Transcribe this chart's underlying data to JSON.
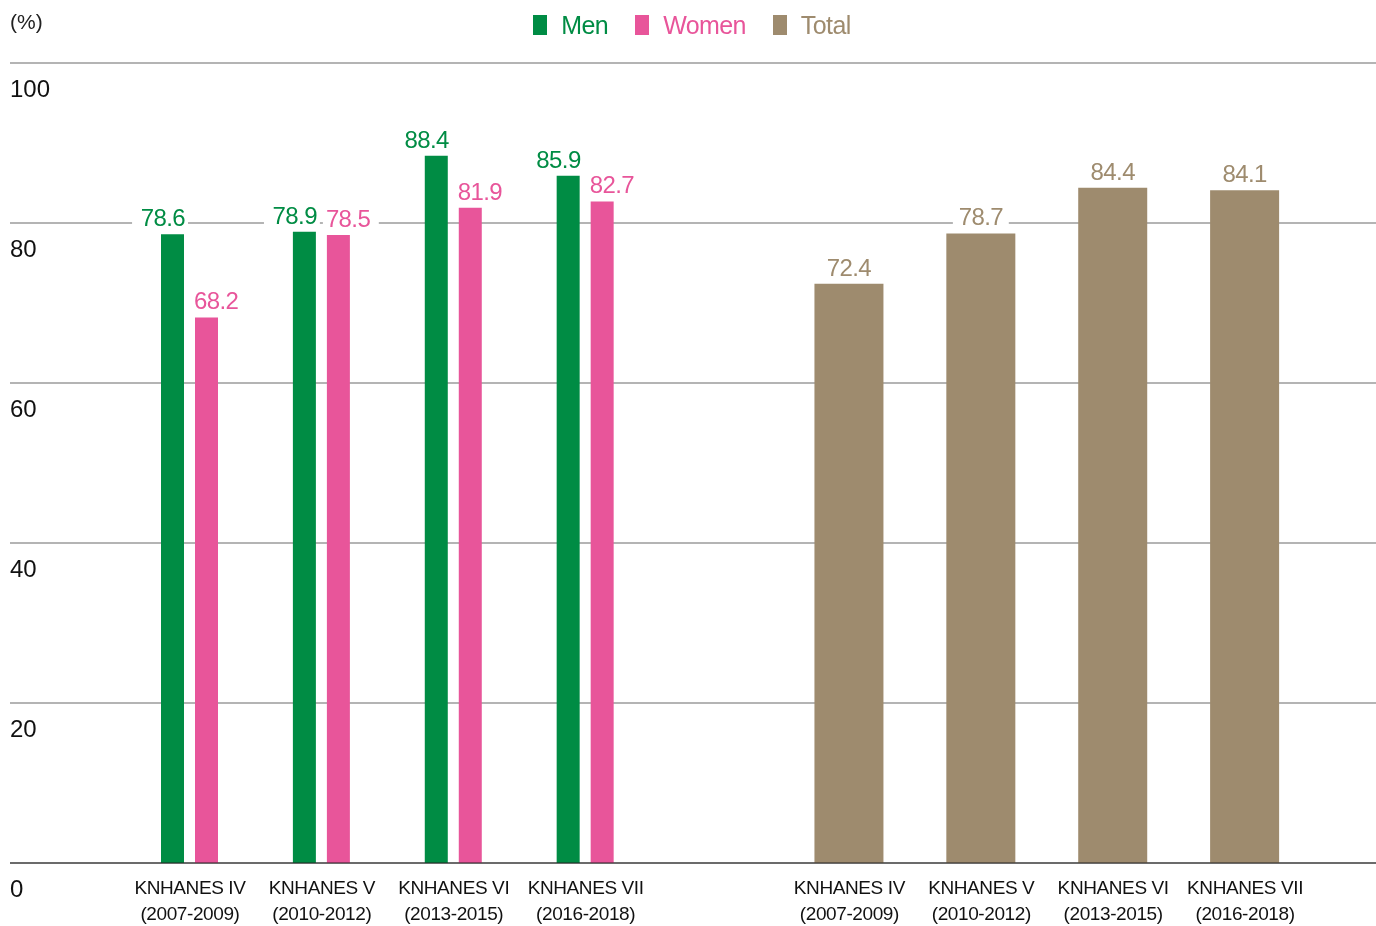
{
  "chart_data": {
    "type": "bar",
    "ylabel": "(%)",
    "categories": [
      "KNHANES IV (2007-2009)",
      "KNHANES V (2010-2012)",
      "KNHANES VI (2013-2015)",
      "KNHANES VII (2016-2018)",
      null,
      "KNHANES IV (2007-2009)",
      "KNHANES V (2010-2012)",
      "KNHANES VI (2013-2015)",
      "KNHANES VII (2016-2018)"
    ],
    "series": [
      {
        "name": "Men",
        "color": "#008c44",
        "values": [
          78.6,
          78.9,
          88.4,
          85.9,
          null,
          null,
          null,
          null,
          null
        ]
      },
      {
        "name": "Women",
        "color": "#e8559a",
        "values": [
          68.2,
          78.5,
          81.9,
          82.7,
          null,
          null,
          null,
          null,
          null
        ]
      },
      {
        "name": "Total",
        "color": "#9e8b6e",
        "values": [
          null,
          null,
          null,
          null,
          null,
          72.4,
          78.7,
          84.4,
          84.1
        ]
      }
    ],
    "ylim": [
      0,
      100
    ],
    "yticks": [
      0,
      20,
      40,
      60,
      80,
      100
    ],
    "grid": "y",
    "legend": "top",
    "data_labels": true
  }
}
